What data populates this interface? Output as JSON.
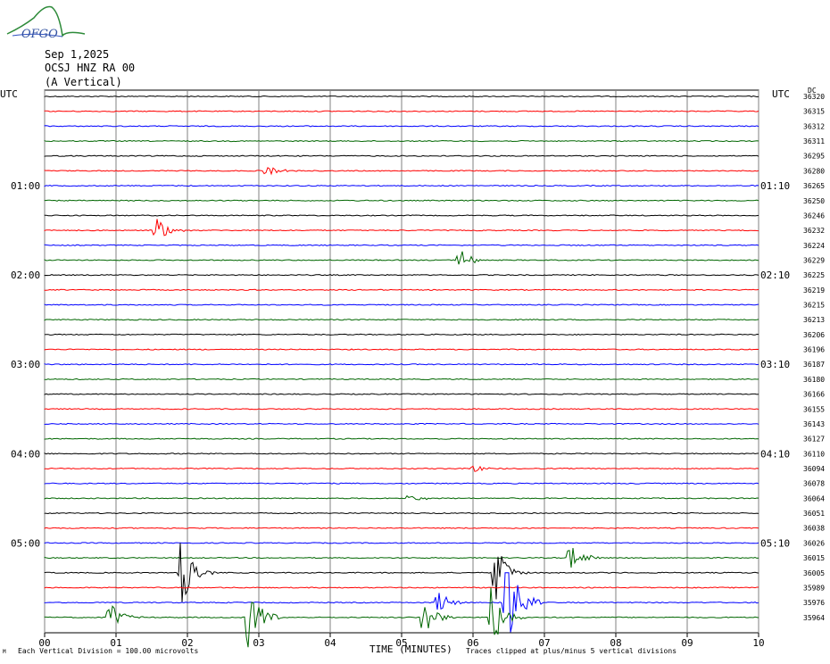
{
  "logo": {
    "text": "OFGO",
    "icon": "wave-logo-icon"
  },
  "header": {
    "date": "Sep 1,2025",
    "station": "OCSJ HNZ RA 00",
    "component": "(A Vertical)"
  },
  "utc_left": "UTC",
  "utc_right": "UTC",
  "dc_label": "DC",
  "footer": {
    "scale_note": "Each Vertical Division = 100.00 microvolts",
    "clip_note": "Traces clipped at plus/minus 5 vertical divisions",
    "corner_mark": "M"
  },
  "colors": {
    "black": "#000000",
    "red": "#ff0000",
    "blue": "#0000ff",
    "green": "#006600",
    "grid": "#808080"
  },
  "chart_data": {
    "type": "helicorder",
    "xlabel": "TIME (MINUTES)",
    "x_ticks": [
      "00",
      "01",
      "02",
      "03",
      "04",
      "05",
      "06",
      "07",
      "08",
      "09",
      "10"
    ],
    "xlim": [
      0,
      10
    ],
    "line_minutes": 10,
    "color_cycle": [
      "black",
      "red",
      "blue",
      "green"
    ],
    "left_hour_labels": [
      {
        "line": 6,
        "label": "01:00"
      },
      {
        "line": 12,
        "label": "02:00"
      },
      {
        "line": 18,
        "label": "03:00"
      },
      {
        "line": 24,
        "label": "04:00"
      },
      {
        "line": 30,
        "label": "05:00"
      }
    ],
    "right_hour_labels": [
      {
        "line": 6,
        "label": "01:10"
      },
      {
        "line": 12,
        "label": "02:10"
      },
      {
        "line": 18,
        "label": "03:10"
      },
      {
        "line": 24,
        "label": "04:10"
      },
      {
        "line": 30,
        "label": "05:10"
      }
    ],
    "dc_offsets": [
      36320,
      36315,
      36312,
      36311,
      36295,
      36280,
      36265,
      36250,
      36246,
      36232,
      36224,
      36229,
      36225,
      36219,
      36215,
      36213,
      36206,
      36196,
      36187,
      36180,
      36166,
      36155,
      36143,
      36127,
      36110,
      36094,
      36078,
      36064,
      36051,
      36038,
      36026,
      36015,
      36005,
      35989,
      35976,
      35964
    ],
    "events": [
      {
        "line": 5,
        "minute": 3.1,
        "amp": 0.4
      },
      {
        "line": 9,
        "minute": 1.55,
        "amp": 1.0
      },
      {
        "line": 11,
        "minute": 5.8,
        "amp": 1.0
      },
      {
        "line": 25,
        "minute": 6.0,
        "amp": 0.3
      },
      {
        "line": 27,
        "minute": 5.1,
        "amp": 0.4
      },
      {
        "line": 31,
        "minute": 7.35,
        "amp": 1.2
      },
      {
        "line": 32,
        "minute": 1.9,
        "amp": 3.0
      },
      {
        "line": 32,
        "minute": 6.3,
        "amp": 2.5
      },
      {
        "line": 34,
        "minute": 5.5,
        "amp": 1.0
      },
      {
        "line": 34,
        "minute": 6.45,
        "amp": 5.0
      },
      {
        "line": 35,
        "minute": 0.9,
        "amp": 1.2
      },
      {
        "line": 35,
        "minute": 2.85,
        "amp": 3.0
      },
      {
        "line": 35,
        "minute": 5.3,
        "amp": 1.5
      },
      {
        "line": 35,
        "minute": 6.25,
        "amp": 2.5
      }
    ]
  }
}
